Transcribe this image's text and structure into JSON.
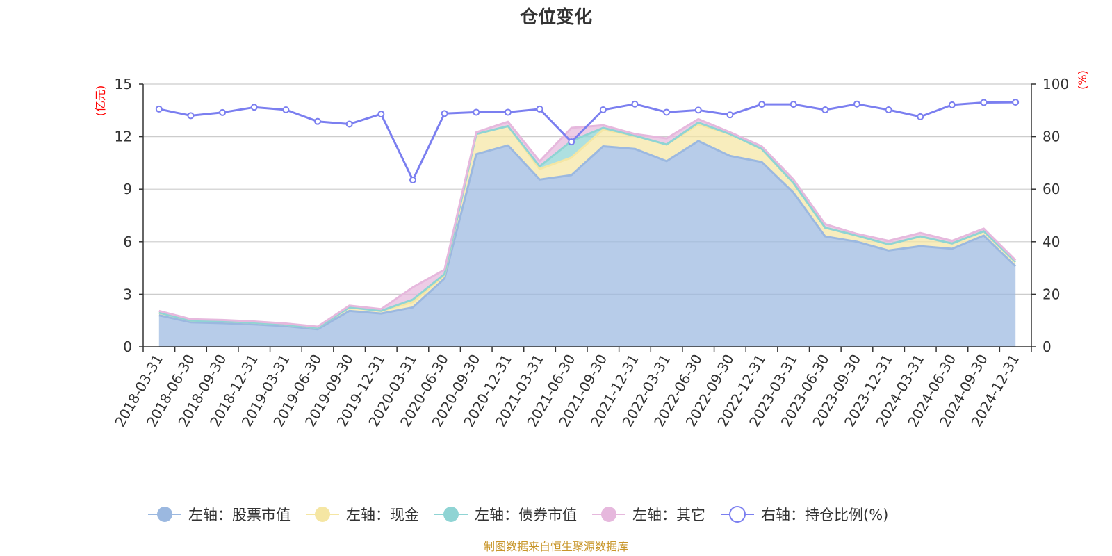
{
  "chart_data": {
    "type": "area",
    "title": "仓位变化",
    "x": [
      "2018-03-31",
      "2018-06-30",
      "2018-09-30",
      "2018-12-31",
      "2019-03-31",
      "2019-06-30",
      "2019-09-30",
      "2019-12-31",
      "2020-03-31",
      "2020-06-30",
      "2020-09-30",
      "2020-12-31",
      "2021-03-31",
      "2021-06-30",
      "2021-09-30",
      "2021-12-31",
      "2022-03-31",
      "2022-06-30",
      "2022-09-30",
      "2022-12-31",
      "2023-03-31",
      "2023-06-30",
      "2023-09-30",
      "2023-12-31",
      "2024-03-31",
      "2024-06-30",
      "2024-09-30",
      "2024-12-31"
    ],
    "left_axis": {
      "label": "(亿元)",
      "ylim": [
        0,
        15
      ],
      "ticks": [
        "0",
        "3",
        "6",
        "9",
        "12",
        "15"
      ]
    },
    "right_axis": {
      "label": "(%)",
      "ylim": [
        0,
        100
      ],
      "ticks": [
        "0",
        "20",
        "40",
        "60",
        "80",
        "100"
      ]
    },
    "series": [
      {
        "name": "左轴：股票市值",
        "axis": "left",
        "color": "#9bb8e0",
        "values": [
          1.8,
          1.4,
          1.35,
          1.28,
          1.18,
          1.0,
          2.05,
          1.9,
          2.25,
          3.9,
          11.0,
          11.5,
          9.55,
          9.8,
          11.45,
          11.3,
          10.6,
          11.75,
          10.9,
          10.55,
          8.8,
          6.3,
          6.0,
          5.5,
          5.75,
          5.6,
          6.35,
          4.6
        ]
      },
      {
        "name": "左轴：现金",
        "axis": "left",
        "color": "#f5e6a3",
        "values": [
          0.15,
          0.1,
          0.1,
          0.1,
          0.08,
          0.08,
          0.2,
          0.15,
          0.3,
          0.2,
          1.15,
          1.1,
          0.6,
          1.0,
          0.95,
          0.75,
          0.95,
          0.95,
          1.25,
          0.75,
          0.55,
          0.5,
          0.35,
          0.35,
          0.55,
          0.3,
          0.25,
          0.25
        ]
      },
      {
        "name": "左轴：债券市值",
        "axis": "left",
        "color": "#8fd4d4",
        "values": [
          0,
          0,
          0,
          0,
          0,
          0,
          0,
          0,
          0.15,
          0.05,
          0,
          0,
          0.15,
          0.95,
          0.1,
          0,
          0,
          0.1,
          0,
          0,
          0,
          0,
          0,
          0,
          0,
          0,
          0,
          0
        ]
      },
      {
        "name": "左轴：其它",
        "axis": "left",
        "color": "#e6b8dd",
        "values": [
          0.1,
          0.08,
          0.08,
          0.07,
          0.07,
          0.07,
          0.1,
          0.1,
          0.7,
          0.25,
          0.1,
          0.25,
          0.3,
          0.75,
          0.15,
          0.1,
          0.35,
          0.2,
          0.1,
          0.15,
          0.2,
          0.2,
          0.1,
          0.2,
          0.2,
          0.15,
          0.15,
          0.1
        ]
      },
      {
        "name": "右轴：持仓比例(%)",
        "axis": "right",
        "color": "#7b7ff0",
        "values": [
          90.5,
          88.0,
          89.2,
          91.2,
          90.2,
          85.8,
          84.8,
          88.6,
          63.5,
          88.8,
          89.3,
          89.3,
          90.5,
          78.0,
          90.2,
          92.4,
          89.3,
          90.1,
          88.3,
          92.3,
          92.3,
          90.2,
          92.4,
          90.2,
          87.6,
          92.1,
          93.0,
          93.1
        ]
      }
    ]
  },
  "source_note": "制图数据来自恒生聚源数据库"
}
